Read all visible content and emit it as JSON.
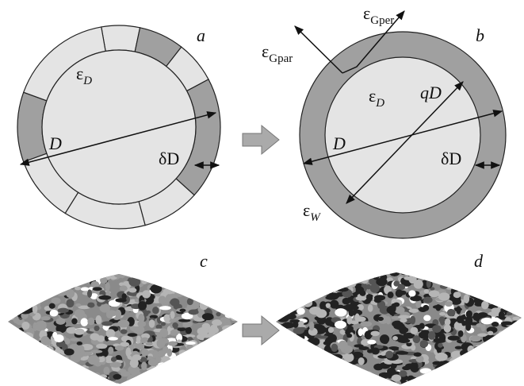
{
  "panels": {
    "a": {
      "label": "a",
      "eps_D": {
        "base": "ε",
        "sub": "D"
      },
      "D": "D",
      "delta_D": "δD"
    },
    "b": {
      "label": "b",
      "eps_Gper": {
        "base": "ε",
        "sub": "Gper"
      },
      "eps_Gpar": {
        "base": "ε",
        "sub": "Gpar"
      },
      "eps_D": {
        "base": "ε",
        "sub": "D"
      },
      "qD": "qD",
      "D": "D",
      "delta_D": "δD",
      "eps_W": {
        "base": "ε",
        "sub": "W"
      }
    },
    "c": {
      "label": "c"
    },
    "d": {
      "label": "d"
    }
  }
}
